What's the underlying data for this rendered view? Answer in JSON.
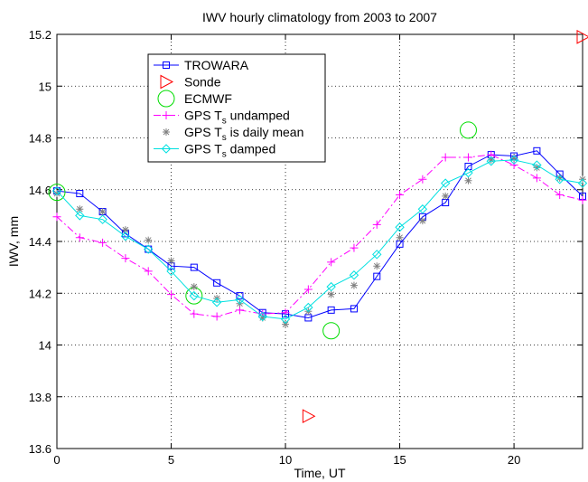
{
  "chart_data": {
    "type": "line",
    "title": "IWV hourly climatology from 2003 to 2007",
    "xlabel": "Time, UT",
    "ylabel": "IWV, mm",
    "xlim": [
      0,
      23
    ],
    "ylim": [
      13.6,
      15.2
    ],
    "xticks": [
      0,
      5,
      10,
      15,
      20
    ],
    "xtick_labels": [
      "0",
      "5",
      "10",
      "15",
      "20"
    ],
    "yticks": [
      13.6,
      13.8,
      14.0,
      14.2,
      14.4,
      14.6,
      14.8,
      15.0,
      15.2
    ],
    "ytick_labels": [
      "13.6",
      "13.8",
      "14",
      "14.2",
      "14.4",
      "14.6",
      "14.8",
      "15",
      "15.2"
    ],
    "grid": true,
    "legend_position": "top-left",
    "series": [
      {
        "name": "TROWARA",
        "color": "#0000ff",
        "marker": "square",
        "line": "solid",
        "x": [
          0,
          1,
          2,
          3,
          4,
          5,
          6,
          7,
          8,
          9,
          10,
          11,
          12,
          13,
          14,
          15,
          16,
          17,
          18,
          19,
          20,
          21,
          22,
          23
        ],
        "y": [
          14.595,
          14.585,
          14.515,
          14.43,
          14.37,
          14.305,
          14.3,
          14.24,
          14.19,
          14.125,
          14.12,
          14.105,
          14.135,
          14.14,
          14.265,
          14.39,
          14.495,
          14.55,
          14.69,
          14.735,
          14.73,
          14.75,
          14.66,
          14.575
        ]
      },
      {
        "name": "Sonde",
        "color": "#ff0000",
        "marker": "triangle-right",
        "line": "none",
        "x": [
          11,
          23
        ],
        "y": [
          13.725,
          15.19
        ]
      },
      {
        "name": "ECMWF",
        "color": "#00dd00",
        "marker": "circle",
        "line": "none",
        "x": [
          0,
          6,
          12,
          18
        ],
        "y": [
          14.59,
          14.19,
          14.055,
          14.83
        ]
      },
      {
        "name": "GPS T",
        "name_sub": "s",
        "name_suffix": " undamped",
        "color": "#ff00ff",
        "marker": "plus",
        "line": "dashdot",
        "x": [
          0,
          1,
          2,
          3,
          4,
          5,
          6,
          7,
          8,
          9,
          10,
          11,
          12,
          13,
          14,
          15,
          16,
          17,
          18,
          19,
          20,
          21,
          22,
          23
        ],
        "y": [
          14.495,
          14.415,
          14.395,
          14.335,
          14.285,
          14.195,
          14.12,
          14.11,
          14.135,
          14.12,
          14.125,
          14.215,
          14.32,
          14.375,
          14.465,
          14.58,
          14.64,
          14.725,
          14.725,
          14.735,
          14.695,
          14.645,
          14.58,
          14.56
        ]
      },
      {
        "name": "GPS T",
        "name_sub": "s",
        "name_suffix": " is daily mean",
        "color": "#808080",
        "marker": "asterisk",
        "line": "none",
        "x": [
          0,
          1,
          2,
          3,
          4,
          5,
          6,
          7,
          8,
          9,
          10,
          11,
          12,
          13,
          14,
          15,
          16,
          17,
          18,
          19,
          20,
          21,
          22,
          23
        ],
        "y": [
          14.585,
          14.525,
          14.515,
          14.445,
          14.405,
          14.325,
          14.225,
          14.18,
          14.16,
          14.105,
          14.08,
          14.13,
          14.195,
          14.23,
          14.305,
          14.415,
          14.48,
          14.575,
          14.635,
          14.715,
          14.72,
          14.685,
          14.645,
          14.64
        ]
      },
      {
        "name": "GPS T",
        "name_sub": "s",
        "name_suffix": " damped",
        "color": "#00e0e0",
        "marker": "diamond",
        "line": "solid",
        "x": [
          0,
          1,
          2,
          3,
          4,
          5,
          6,
          7,
          8,
          9,
          10,
          11,
          12,
          13,
          14,
          15,
          16,
          17,
          18,
          19,
          20,
          21,
          22,
          23
        ],
        "y": [
          14.595,
          14.5,
          14.485,
          14.42,
          14.37,
          14.285,
          14.19,
          14.165,
          14.175,
          14.11,
          14.1,
          14.145,
          14.225,
          14.27,
          14.35,
          14.455,
          14.525,
          14.625,
          14.665,
          14.71,
          14.715,
          14.695,
          14.64,
          14.625
        ]
      }
    ]
  }
}
